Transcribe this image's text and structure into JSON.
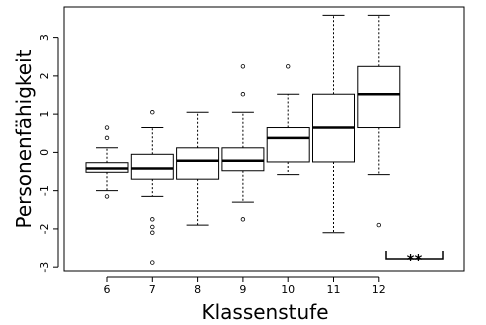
{
  "chart_data": {
    "type": "boxplot",
    "xlabel": "Klassenstufe",
    "ylabel": "Personenfähigkeit",
    "ylim": [
      -3.1,
      3.8
    ],
    "yticks": [
      -3,
      -2,
      -1,
      0,
      1,
      2,
      3
    ],
    "categories": [
      "6",
      "7",
      "8",
      "9",
      "10",
      "11",
      "12"
    ],
    "boxes": [
      {
        "category": "6",
        "whisker_low": -1.0,
        "q1": -0.52,
        "median": -0.42,
        "q3": -0.27,
        "whisker_high": 0.12,
        "outliers": [
          -1.15,
          0.38,
          0.65
        ]
      },
      {
        "category": "7",
        "whisker_low": -1.15,
        "q1": -0.7,
        "median": -0.42,
        "q3": -0.05,
        "whisker_high": 0.65,
        "outliers": [
          -1.75,
          -1.95,
          -2.1,
          -2.88,
          1.05
        ]
      },
      {
        "category": "8",
        "whisker_low": -1.9,
        "q1": -0.7,
        "median": -0.22,
        "q3": 0.12,
        "whisker_high": 1.05,
        "outliers": []
      },
      {
        "category": "9",
        "whisker_low": -1.3,
        "q1": -0.48,
        "median": -0.22,
        "q3": 0.12,
        "whisker_high": 1.05,
        "outliers": [
          -1.75,
          1.52,
          2.25
        ]
      },
      {
        "category": "10",
        "whisker_low": -0.58,
        "q1": -0.25,
        "median": 0.38,
        "q3": 0.65,
        "whisker_high": 1.52,
        "outliers": [
          2.25
        ]
      },
      {
        "category": "11",
        "whisker_low": -2.1,
        "q1": -0.25,
        "median": 0.65,
        "q3": 1.52,
        "whisker_high": 3.58,
        "outliers": []
      },
      {
        "category": "12",
        "whisker_low": -0.58,
        "q1": 0.65,
        "median": 1.52,
        "q3": 2.25,
        "whisker_high": 3.58,
        "outliers": [
          -1.9
        ]
      }
    ],
    "annotation": {
      "text": "**",
      "between": [
        "11",
        "12"
      ]
    },
    "grid": false,
    "legend": "none"
  }
}
